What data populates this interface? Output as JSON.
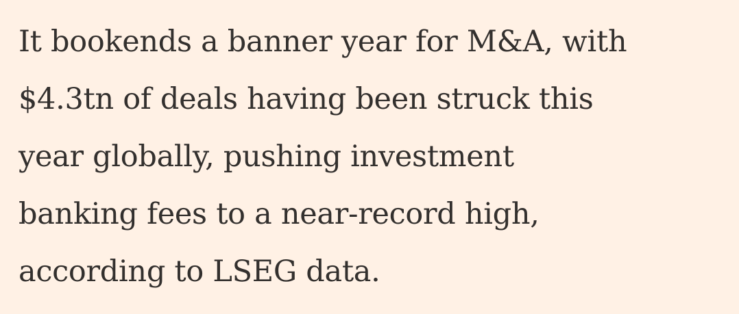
{
  "article": {
    "paragraph_lines": [
      "It bookends a banner year for M&A, with",
      "$4.3tn of deals having been struck this",
      "year globally, pushing investment",
      "banking fees to a near-record high,",
      "according to LSEG data."
    ]
  },
  "colors": {
    "background": "#FFF1E5",
    "text": "#33302E"
  }
}
